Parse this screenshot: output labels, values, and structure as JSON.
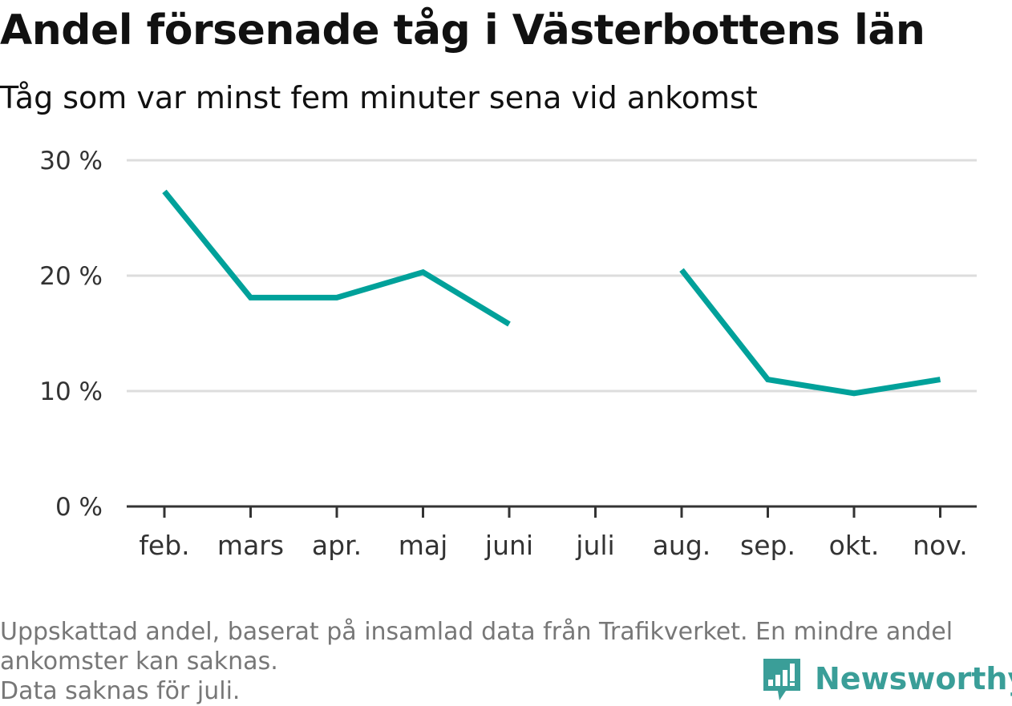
{
  "title": "Andel försenade tåg i Västerbottens län",
  "subtitle": "Tåg som var minst fem minuter sena vid ankomst",
  "footnote": {
    "line1": "Uppskattad andel, baserat på insamlad data från Trafikverket. En mindre andel",
    "line2": "ankomster kan saknas.",
    "line3": "Data saknas för juli."
  },
  "brand": {
    "name": "Newsworthy",
    "icon": "newsworthy-logo-icon",
    "color": "#3a9e98"
  },
  "chart_data": {
    "type": "line",
    "categories": [
      "feb.",
      "mars",
      "apr.",
      "maj",
      "juni",
      "juli",
      "aug.",
      "sep.",
      "okt.",
      "nov."
    ],
    "series": [
      {
        "values": [
          27.3,
          18.1,
          18.1,
          20.3,
          15.8,
          null,
          20.5,
          11.0,
          9.8,
          11.0
        ],
        "color": "#00a19a"
      }
    ],
    "yticks": [
      0,
      10,
      20,
      30
    ],
    "ytick_labels": [
      "0 %",
      "10 %",
      "20 %",
      "30 %"
    ],
    "ylim": [
      0,
      30
    ],
    "grid": true,
    "gridline_color": "#dddddd",
    "axis_color": "#333333"
  }
}
